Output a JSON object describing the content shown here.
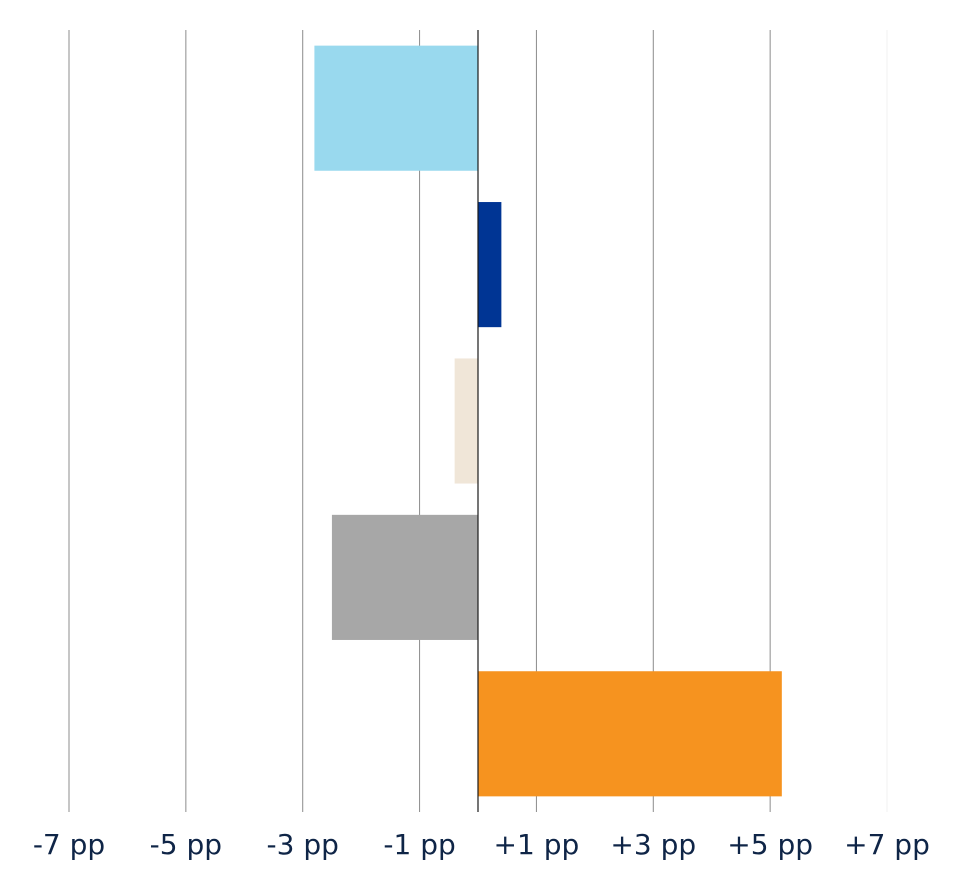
{
  "chart_data": {
    "type": "bar",
    "orientation": "horizontal",
    "title": "",
    "xlabel": "",
    "ylabel": "",
    "xlim": [
      -7,
      7
    ],
    "grid": true,
    "tick_values": [
      -7,
      -5,
      -3,
      -1,
      1,
      3,
      5,
      7
    ],
    "tick_labels": [
      "-7 pp",
      "-5 pp",
      "-3 pp",
      "-1 pp",
      "+1 pp",
      "+3 pp",
      "+5 pp",
      "+7 pp"
    ],
    "categories": [
      "",
      "",
      "",
      "",
      ""
    ],
    "values": [
      -2.8,
      0.4,
      -0.4,
      -2.5,
      5.2
    ],
    "colors": [
      "#99d9ee",
      "#003594",
      "#f0e6d8",
      "#a7a7a7",
      "#f6931f"
    ]
  }
}
